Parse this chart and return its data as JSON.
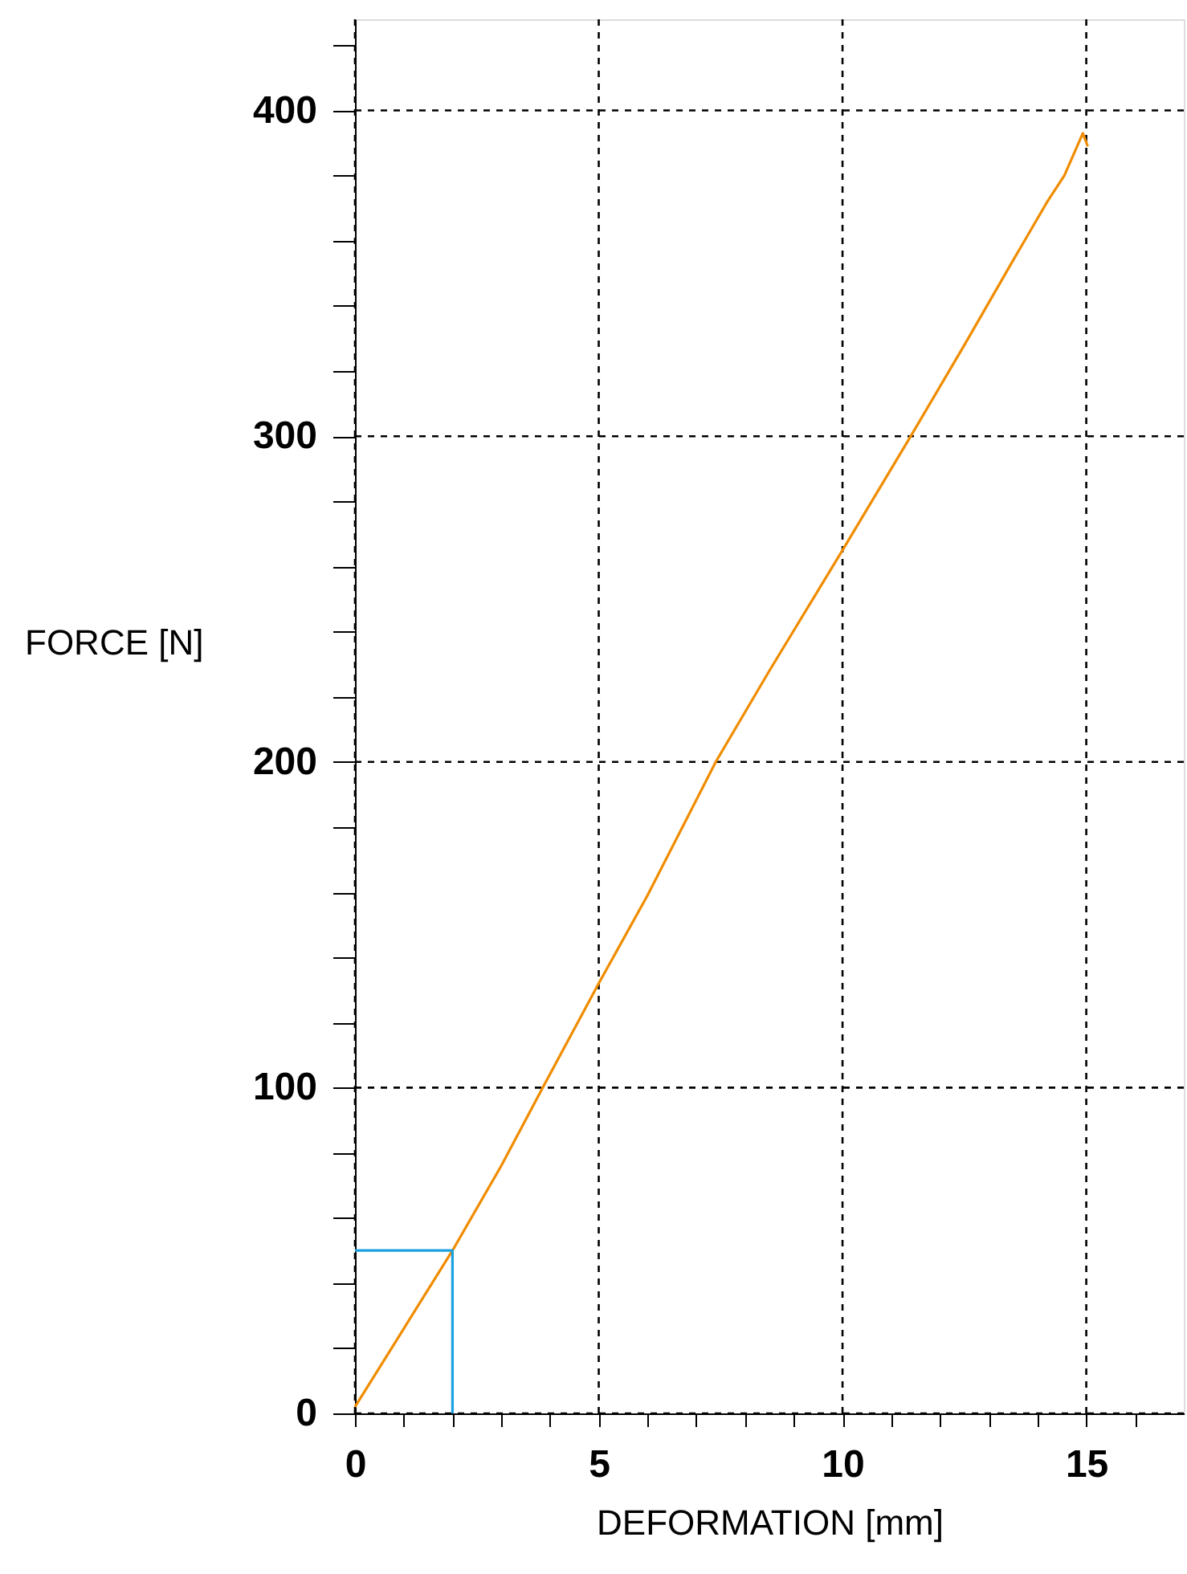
{
  "chart_data": {
    "type": "line",
    "xlabel": "DEFORMATION [mm]",
    "ylabel": "FORCE [N]",
    "xlim": [
      0,
      17
    ],
    "ylim": [
      0,
      428
    ],
    "xticks": [
      0,
      {
        "value": 1,
        "label": null
      },
      {
        "value": 2,
        "label": null
      },
      {
        "value": 3,
        "label": null
      },
      {
        "value": 4,
        "label": null
      },
      5,
      {
        "value": 6,
        "label": null
      },
      {
        "value": 7,
        "label": null
      },
      {
        "value": 8,
        "label": null
      },
      {
        "value": 9,
        "label": null
      },
      10,
      {
        "value": 11,
        "label": null
      },
      {
        "value": 12,
        "label": null
      },
      {
        "value": 13,
        "label": null
      },
      {
        "value": 14,
        "label": null
      },
      15,
      {
        "value": 16,
        "label": null
      }
    ],
    "yticks": [
      0,
      {
        "value": 20,
        "label": null
      },
      {
        "value": 40,
        "label": null
      },
      {
        "value": 60,
        "label": null
      },
      {
        "value": 80,
        "label": null
      },
      100,
      {
        "value": 120,
        "label": null
      },
      {
        "value": 140,
        "label": null
      },
      {
        "value": 160,
        "label": null
      },
      {
        "value": 180,
        "label": null
      },
      200,
      {
        "value": 220,
        "label": null
      },
      {
        "value": 240,
        "label": null
      },
      {
        "value": 260,
        "label": null
      },
      {
        "value": 280,
        "label": null
      },
      300,
      {
        "value": 320,
        "label": null
      },
      {
        "value": 340,
        "label": null
      },
      {
        "value": 360,
        "label": null
      },
      {
        "value": 380,
        "label": null
      },
      400,
      {
        "value": 420,
        "label": null
      }
    ],
    "grid": true,
    "line_style": "solid",
    "marker": "none",
    "series": [
      {
        "color": "#f08c00",
        "x": [
          0,
          1,
          2,
          3,
          3.85,
          5,
          6,
          7.4,
          8.5,
          10,
          11.4,
          12.5,
          13.5,
          14.2,
          14.55,
          14.93,
          15.03
        ],
        "values": [
          2,
          26,
          50,
          76,
          100,
          132,
          159,
          200,
          228,
          265,
          300,
          328,
          354,
          372,
          380,
          393,
          389
        ]
      },
      {
        "color": "#1ca0e0",
        "x": [
          0,
          2,
          2
        ],
        "values": [
          50,
          50,
          0
        ]
      }
    ]
  }
}
